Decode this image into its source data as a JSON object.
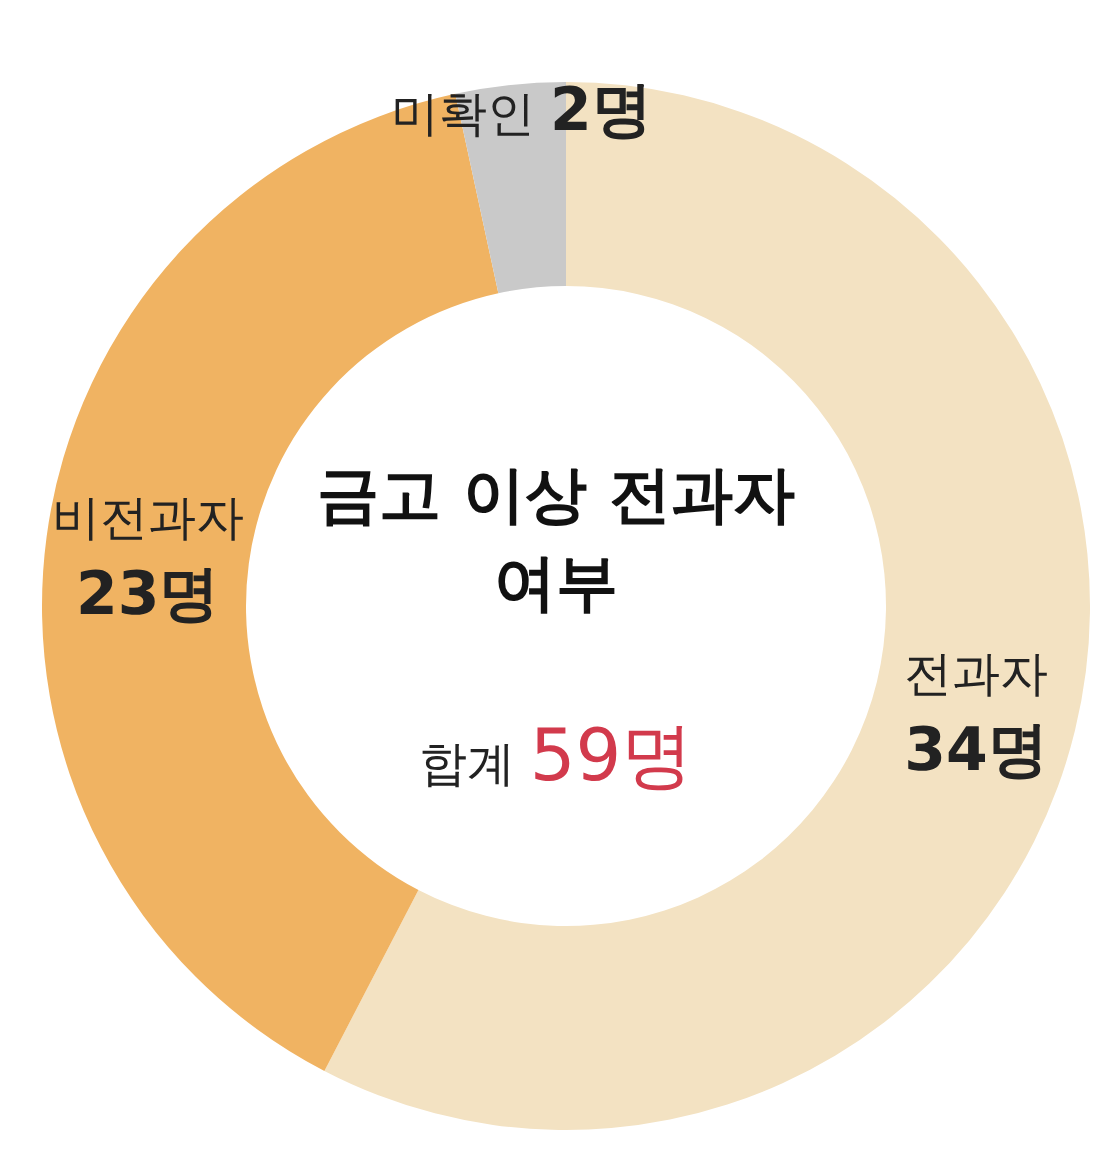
{
  "chart_data": {
    "type": "donut",
    "title": "금고 이상 전과자 여부",
    "categories": [
      "전과자",
      "비전과자",
      "미확인"
    ],
    "values": [
      34,
      23,
      2
    ],
    "colors": [
      "#f3e2c2",
      "#f0b362",
      "#c9c9c9"
    ],
    "value_labels": [
      "34명",
      "23명",
      "2명"
    ],
    "annotations": [
      "합계 59명"
    ]
  }
}
